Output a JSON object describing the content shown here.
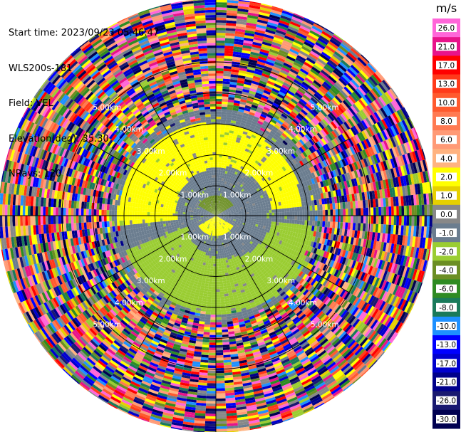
{
  "header": {
    "start_time": "Start time: 2023/09/23 05:46:47",
    "instrument": "WLS200s-181",
    "field": "Field: VEL",
    "elevation": "Elevation(deg): 35.30",
    "nrays": "NRays: 120"
  },
  "chart_data": {
    "type": "heatmap",
    "projection": "polar-ppi",
    "field": "VEL",
    "units": "m/s",
    "range_rings_km": [
      1.0,
      2.0,
      3.0,
      4.0,
      5.0
    ],
    "ring_label_text": [
      "1.00km",
      "2.00km",
      "3.00km",
      "4.00km",
      "5.00km"
    ],
    "radial_spokes_deg": [
      0,
      30,
      60,
      90,
      120,
      150,
      180,
      210,
      240,
      270,
      300,
      330
    ],
    "colorbar": {
      "title": "m/s",
      "labels": [
        "26.0",
        "21.0",
        "17.0",
        "13.0",
        "10.0",
        "8.0",
        "6.0",
        "4.0",
        "2.0",
        "1.0",
        "0.0",
        "-1.0",
        "-2.0",
        "-4.0",
        "-6.0",
        "-8.0",
        "-10.0",
        "-13.0",
        "-17.0",
        "-21.0",
        "-26.0",
        "-30.0"
      ],
      "colors": [
        "#ff66d9",
        "#e8138a",
        "#ff0000",
        "#ff3a1a",
        "#ff5a2e",
        "#ff7a52",
        "#ff9a76",
        "#ffb380",
        "#ffff00",
        "#e6d000",
        "#888888",
        "#6b7d8f",
        "#9acd32",
        "#6b8e23",
        "#2e8b22",
        "#1a7a5a",
        "#1e90ff",
        "#0000ff",
        "#0000cd",
        "#00008b",
        "#191970",
        "#000050"
      ]
    },
    "regions": [
      {
        "name": "outer-noise",
        "r_km": [
          3.6,
          7.2
        ],
        "pattern": "random"
      },
      {
        "name": "receding-arc",
        "r_km": [
          1.3,
          3.3
        ],
        "az_deg": [
          265,
          85
        ],
        "velocity_mps": 2.0
      },
      {
        "name": "approaching-arc",
        "r_km": [
          0.6,
          3.4
        ],
        "az_deg": [
          95,
          250
        ],
        "velocity_mps": -2.0
      },
      {
        "name": "near-core-receding",
        "r_km": [
          0.0,
          0.7
        ],
        "az_deg": [
          120,
          240
        ],
        "velocity_mps": 2.0
      },
      {
        "name": "near-core-approaching",
        "r_km": [
          0.0,
          0.7
        ],
        "az_deg": [
          300,
          60
        ],
        "velocity_mps": -4.0
      }
    ]
  }
}
